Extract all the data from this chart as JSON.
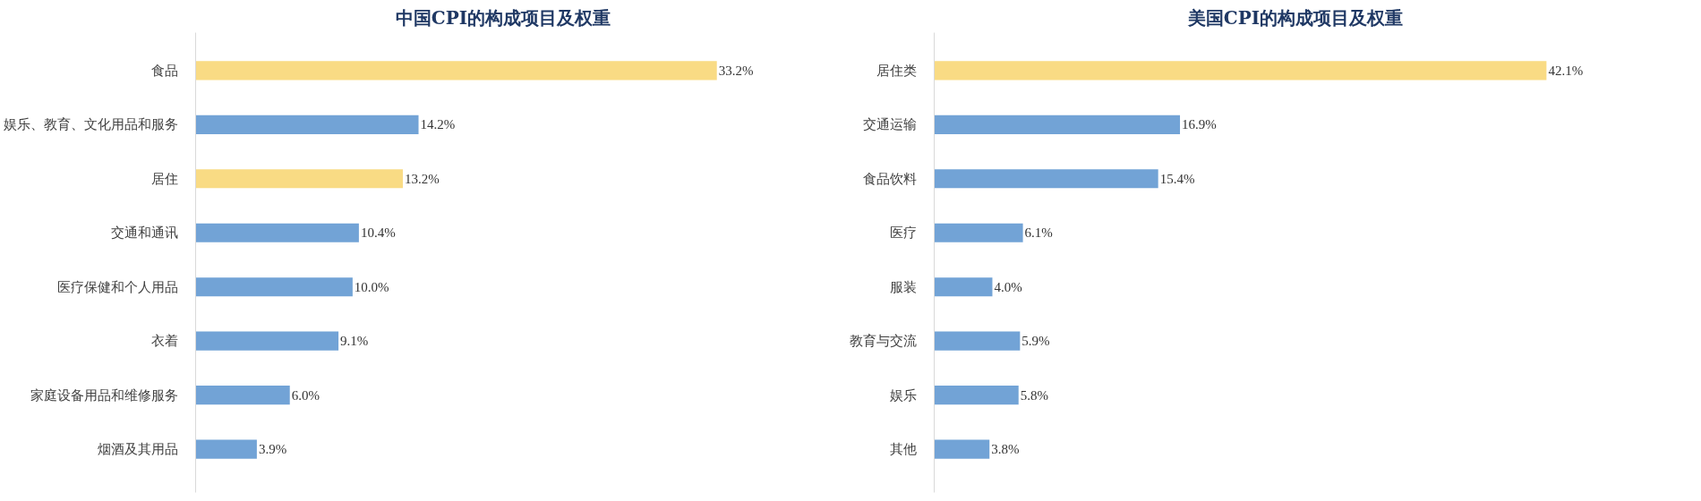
{
  "chart_data": [
    {
      "type": "bar",
      "orientation": "horizontal",
      "title": "中国CPI的构成项目及权重",
      "categories": [
        "食品",
        "娱乐、教育、文化用品和服务",
        "居住",
        "交通和通讯",
        "医疗保健和个人用品",
        "衣着",
        "家庭设备用品和维修服务",
        "烟酒及其用品"
      ],
      "values": [
        33.2,
        14.2,
        13.2,
        10.4,
        10.0,
        9.1,
        6.0,
        3.9
      ],
      "value_labels": [
        "33.2%",
        "14.2%",
        "13.2%",
        "10.4%",
        "10.0%",
        "9.1%",
        "6.0%",
        "3.9%"
      ],
      "colors": [
        "#f9db84",
        "#72a3d6",
        "#f9db84",
        "#72a3d6",
        "#72a3d6",
        "#72a3d6",
        "#72a3d6",
        "#72a3d6"
      ]
    },
    {
      "type": "bar",
      "orientation": "horizontal",
      "title": "美国CPI的构成项目及权重",
      "categories": [
        "居住类",
        "交通运输",
        "食品饮料",
        "医疗",
        "服装",
        "教育与交流",
        "娱乐",
        "其他"
      ],
      "values": [
        42.1,
        16.9,
        15.4,
        6.1,
        4.0,
        5.9,
        5.8,
        3.8
      ],
      "value_labels": [
        "42.1%",
        "16.9%",
        "15.4%",
        "6.1%",
        "4.0%",
        "5.9%",
        "5.8%",
        "3.8%"
      ],
      "colors": [
        "#f9db84",
        "#72a3d6",
        "#72a3d6",
        "#72a3d6",
        "#72a3d6",
        "#72a3d6",
        "#72a3d6",
        "#72a3d6"
      ]
    }
  ]
}
